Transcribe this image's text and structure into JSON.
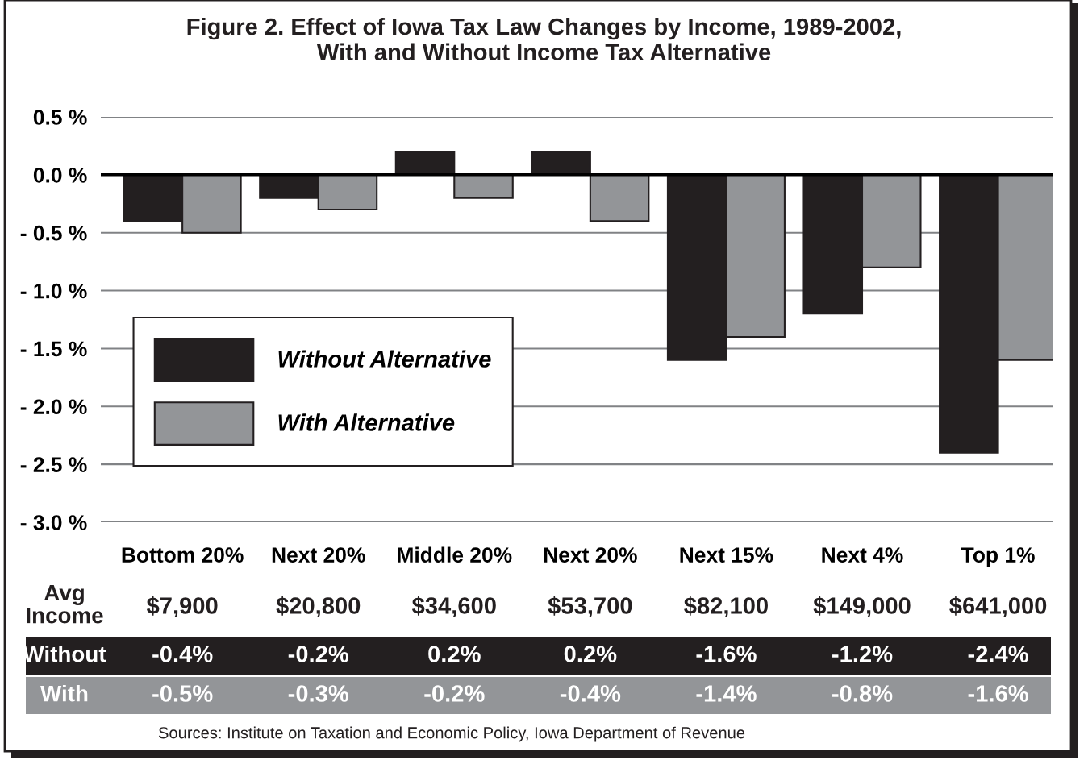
{
  "chart_data": {
    "type": "bar",
    "title": "Figure 2. Effect of Iowa Tax Law Changes by Income, 1989-2002,\nWith and Without Income Tax Alternative",
    "categories": [
      "Bottom 20%",
      "Next 20%",
      "Middle 20%",
      "Next 20%",
      "Next 15%",
      "Next 4%",
      "Top 1%"
    ],
    "series": [
      {
        "name": "Without Alternative",
        "color": "#231f20",
        "values": [
          -0.4,
          -0.2,
          0.2,
          0.2,
          -1.6,
          -1.2,
          -2.4
        ],
        "value_labels": [
          "-0.4%",
          "-0.2%",
          "0.2%",
          "0.2%",
          "-1.6%",
          "-1.2%",
          "-2.4%"
        ]
      },
      {
        "name": "With Alternative",
        "color": "#939598",
        "values": [
          -0.5,
          -0.3,
          -0.2,
          -0.4,
          -1.4,
          -0.8,
          -1.6
        ],
        "value_labels": [
          "-0.5%",
          "-0.3%",
          "-0.2%",
          "-0.4%",
          "-1.4%",
          "-0.8%",
          "-1.6%"
        ]
      }
    ],
    "ylim": [
      -3.0,
      0.5
    ],
    "yticks": [
      {
        "value": 0.5,
        "label": "0.5 %"
      },
      {
        "value": 0.0,
        "label": "0.0 %"
      },
      {
        "value": -0.5,
        "label": "- 0.5 %"
      },
      {
        "value": -1.0,
        "label": "- 1.0 %"
      },
      {
        "value": -1.5,
        "label": "- 1.5 %"
      },
      {
        "value": -2.0,
        "label": "- 2.0 %"
      },
      {
        "value": -2.5,
        "label": "- 2.5 %"
      },
      {
        "value": -3.0,
        "label": "- 3.0 %"
      }
    ],
    "grid": "y",
    "legend": "bottom left",
    "ref_lines": [
      {
        "axis": "y",
        "value": 0,
        "color": "#000000"
      }
    ],
    "annotations": [
      "Avg\nIncome",
      "$7,900",
      "$20,800",
      "$34,600",
      "$53,700",
      "$82,100",
      "$149,000",
      "$641,000",
      "Without",
      "With",
      "Sources: Institute on Taxation and Economic Policy, Iowa Department of Revenue"
    ]
  }
}
